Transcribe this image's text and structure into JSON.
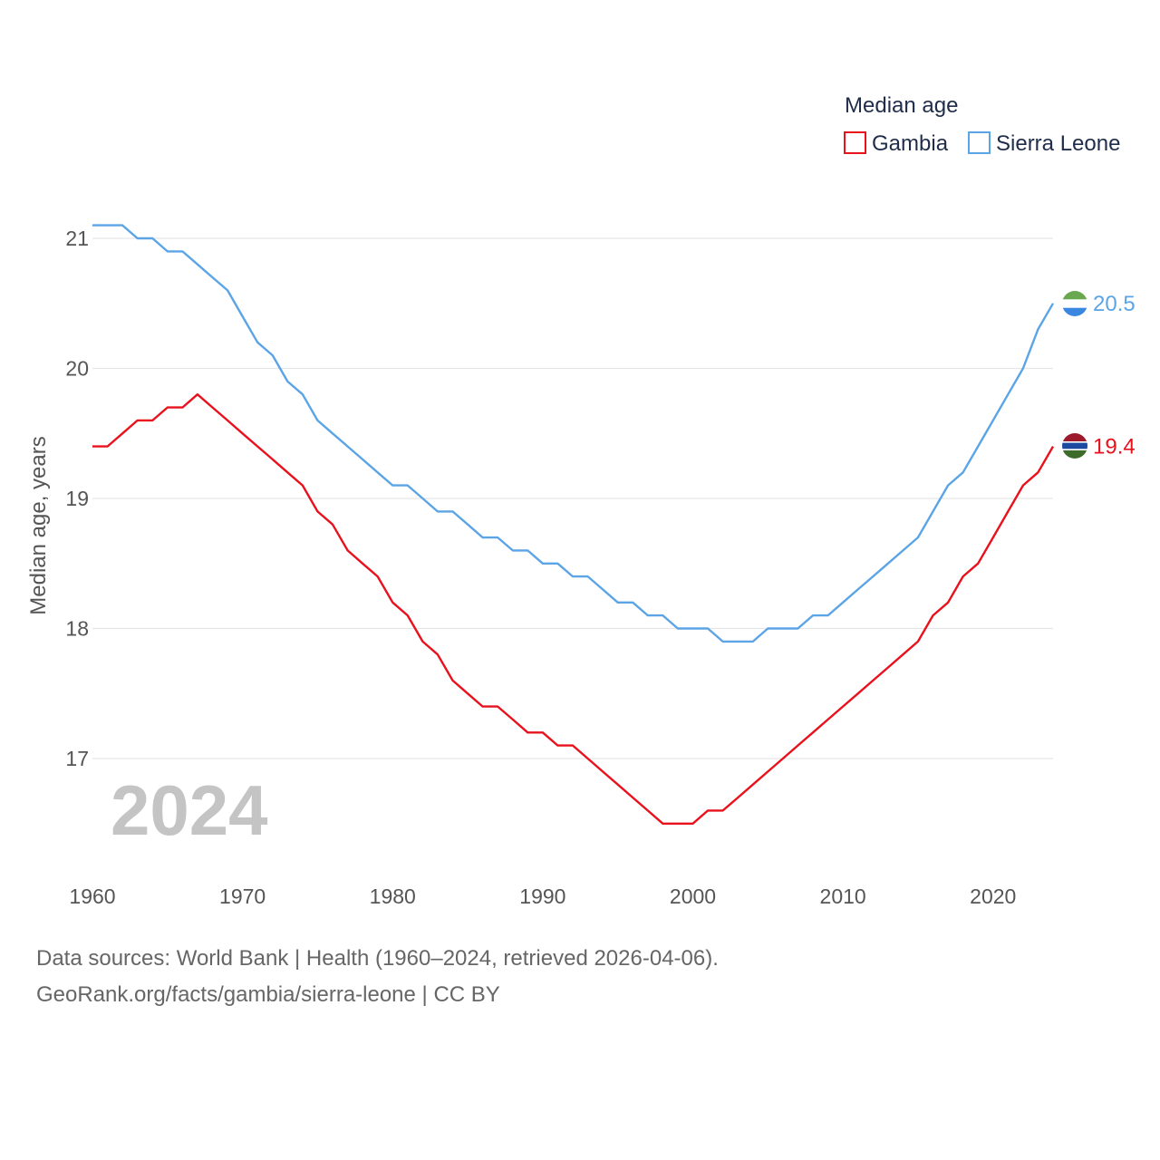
{
  "chart_data": {
    "type": "line",
    "legend_title": "Median age",
    "ylabel": "Median age, years",
    "xlabel": "",
    "ylim": [
      16.3,
      21.2
    ],
    "xlim": [
      1960,
      2024
    ],
    "y_ticks": [
      17,
      18,
      19,
      20,
      21
    ],
    "x_ticks": [
      1960,
      1970,
      1980,
      1990,
      2000,
      2010,
      2020
    ],
    "year_label": "2024",
    "x": [
      1960,
      1961,
      1962,
      1963,
      1964,
      1965,
      1966,
      1967,
      1968,
      1969,
      1970,
      1971,
      1972,
      1973,
      1974,
      1975,
      1976,
      1977,
      1978,
      1979,
      1980,
      1981,
      1982,
      1983,
      1984,
      1985,
      1986,
      1987,
      1988,
      1989,
      1990,
      1991,
      1992,
      1993,
      1994,
      1995,
      1996,
      1997,
      1998,
      1999,
      2000,
      2001,
      2002,
      2003,
      2004,
      2005,
      2006,
      2007,
      2008,
      2009,
      2010,
      2011,
      2012,
      2013,
      2014,
      2015,
      2016,
      2017,
      2018,
      2019,
      2020,
      2021,
      2022,
      2023,
      2024
    ],
    "series": [
      {
        "name": "Gambia",
        "color": "#e8111c",
        "end_label": "19.4",
        "flag": "gambia-flag",
        "values": [
          19.4,
          19.4,
          19.5,
          19.6,
          19.6,
          19.7,
          19.7,
          19.8,
          19.7,
          19.6,
          19.5,
          19.4,
          19.3,
          19.2,
          19.1,
          18.9,
          18.8,
          18.6,
          18.5,
          18.4,
          18.2,
          18.1,
          17.9,
          17.8,
          17.6,
          17.5,
          17.4,
          17.4,
          17.3,
          17.2,
          17.2,
          17.1,
          17.1,
          17.0,
          16.9,
          16.8,
          16.7,
          16.6,
          16.5,
          16.5,
          16.5,
          16.6,
          16.6,
          16.7,
          16.8,
          16.9,
          17.0,
          17.1,
          17.2,
          17.3,
          17.4,
          17.5,
          17.6,
          17.7,
          17.8,
          17.9,
          18.1,
          18.2,
          18.4,
          18.5,
          18.7,
          18.9,
          19.1,
          19.2,
          19.4
        ]
      },
      {
        "name": "Sierra Leone",
        "color": "#5ba4e6",
        "end_label": "20.5",
        "flag": "sierra-leone-flag",
        "values": [
          21.1,
          21.1,
          21.1,
          21.0,
          21.0,
          20.9,
          20.9,
          20.8,
          20.7,
          20.6,
          20.4,
          20.2,
          20.1,
          19.9,
          19.8,
          19.6,
          19.5,
          19.4,
          19.3,
          19.2,
          19.1,
          19.1,
          19.0,
          18.9,
          18.9,
          18.8,
          18.7,
          18.7,
          18.6,
          18.6,
          18.5,
          18.5,
          18.4,
          18.4,
          18.3,
          18.2,
          18.2,
          18.1,
          18.1,
          18.0,
          18.0,
          18.0,
          17.9,
          17.9,
          17.9,
          18.0,
          18.0,
          18.0,
          18.1,
          18.1,
          18.2,
          18.3,
          18.4,
          18.5,
          18.6,
          18.7,
          18.9,
          19.1,
          19.2,
          19.4,
          19.6,
          19.8,
          20.0,
          20.3,
          20.5
        ]
      }
    ]
  },
  "source": {
    "line1": "Data sources: World Bank | Health (1960–2024, retrieved 2026-04-06).",
    "line2": "GeoRank.org/facts/gambia/sierra-leone | CC BY"
  }
}
